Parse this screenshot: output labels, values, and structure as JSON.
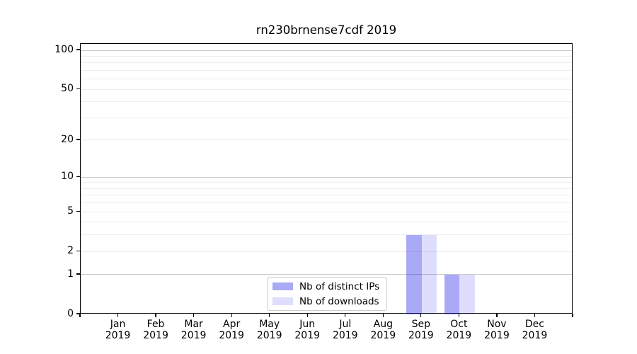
{
  "chart_data": {
    "type": "bar",
    "title": "rn230brnense7cdf 2019",
    "categories": [
      "Jan",
      "Feb",
      "Mar",
      "Apr",
      "May",
      "Jun",
      "Jul",
      "Aug",
      "Sep",
      "Oct",
      "Nov",
      "Dec"
    ],
    "x_tick_year": "2019",
    "series": [
      {
        "name": "Nb of distinct IPs",
        "color": "rgba(10,10,230,0.35)",
        "rendered_hex": "#a9a9f6",
        "values": [
          0,
          0,
          0,
          0,
          0,
          0,
          0,
          0,
          3,
          1,
          0,
          0
        ]
      },
      {
        "name": "Nb of downloads",
        "color": "rgba(10,10,230,0.135)",
        "rendered_hex": "#dedefb",
        "values": [
          0,
          0,
          0,
          0,
          0,
          0,
          0,
          0,
          3,
          1,
          0,
          0
        ]
      }
    ],
    "y_axis": {
      "scale": "log1p",
      "ylim": [
        0,
        112
      ],
      "ticks": [
        0,
        1,
        2,
        5,
        10,
        20,
        50,
        100
      ],
      "major_gridlines": [
        1,
        10,
        100
      ],
      "minor_gridlines": [
        2,
        3,
        4,
        5,
        6,
        7,
        8,
        9,
        20,
        30,
        40,
        50,
        60,
        70,
        80,
        90
      ]
    },
    "grid": "horizontal",
    "legend": {
      "position": "lower center"
    }
  },
  "colors": {
    "axis": "#000000",
    "major_grid": "#c9c9c9",
    "minor_grid": "#ededed",
    "background": "#ffffff"
  }
}
